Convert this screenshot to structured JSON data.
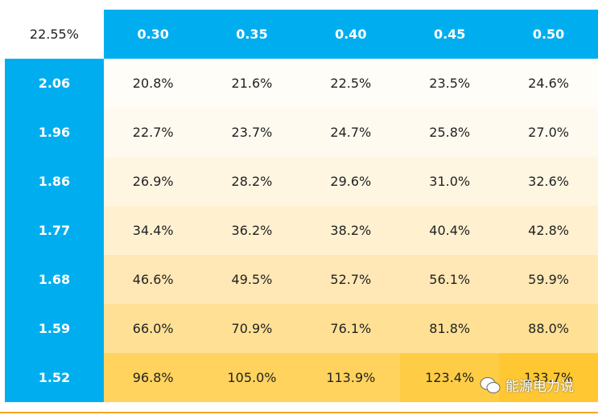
{
  "table": {
    "corner": "22.55%",
    "columns": [
      "0.30",
      "0.35",
      "0.40",
      "0.45",
      "0.50"
    ],
    "rows": [
      {
        "label": "2.06",
        "cells": [
          "20.8%",
          "21.6%",
          "22.5%",
          "23.5%",
          "24.6%"
        ]
      },
      {
        "label": "1.96",
        "cells": [
          "22.7%",
          "23.7%",
          "24.7%",
          "25.8%",
          "27.0%"
        ]
      },
      {
        "label": "1.86",
        "cells": [
          "26.9%",
          "28.2%",
          "29.6%",
          "31.0%",
          "32.6%"
        ]
      },
      {
        "label": "1.77",
        "cells": [
          "34.4%",
          "36.2%",
          "38.2%",
          "40.4%",
          "42.8%"
        ]
      },
      {
        "label": "1.68",
        "cells": [
          "46.6%",
          "49.5%",
          "52.7%",
          "56.1%",
          "59.9%"
        ]
      },
      {
        "label": "1.59",
        "cells": [
          "66.0%",
          "70.9%",
          "76.1%",
          "81.8%",
          "88.0%"
        ]
      },
      {
        "label": "1.52",
        "cells": [
          "96.8%",
          "105.0%",
          "113.9%",
          "123.4%",
          "133.7%"
        ]
      }
    ]
  },
  "watermark": "能源电力说"
}
